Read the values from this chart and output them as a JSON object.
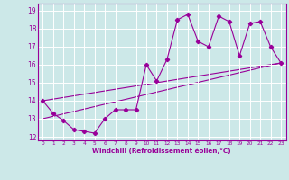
{
  "title": "",
  "xlabel": "Windchill (Refroidissement éolien,°C)",
  "ylabel": "",
  "bg_color": "#cce8e8",
  "line_color": "#990099",
  "grid_color": "#ffffff",
  "xlim": [
    -0.5,
    23.5
  ],
  "ylim": [
    11.8,
    19.4
  ],
  "yticks": [
    12,
    13,
    14,
    15,
    16,
    17,
    18,
    19
  ],
  "xticks": [
    0,
    1,
    2,
    3,
    4,
    5,
    6,
    7,
    8,
    9,
    10,
    11,
    12,
    13,
    14,
    15,
    16,
    17,
    18,
    19,
    20,
    21,
    22,
    23
  ],
  "line1_x": [
    0,
    1,
    2,
    3,
    4,
    5,
    6,
    7,
    8,
    9,
    10,
    11,
    12,
    13,
    14,
    15,
    16,
    17,
    18,
    19,
    20,
    21,
    22,
    23
  ],
  "line1_y": [
    14.0,
    13.3,
    12.9,
    12.4,
    12.3,
    12.2,
    13.0,
    13.5,
    13.5,
    13.5,
    16.0,
    15.1,
    16.3,
    18.5,
    18.8,
    17.3,
    17.0,
    18.7,
    18.4,
    16.5,
    18.3,
    18.4,
    17.0,
    16.1
  ],
  "line2_x": [
    0,
    23
  ],
  "line2_y": [
    13.0,
    16.1
  ],
  "line3_x": [
    0,
    23
  ],
  "line3_y": [
    14.0,
    16.1
  ]
}
